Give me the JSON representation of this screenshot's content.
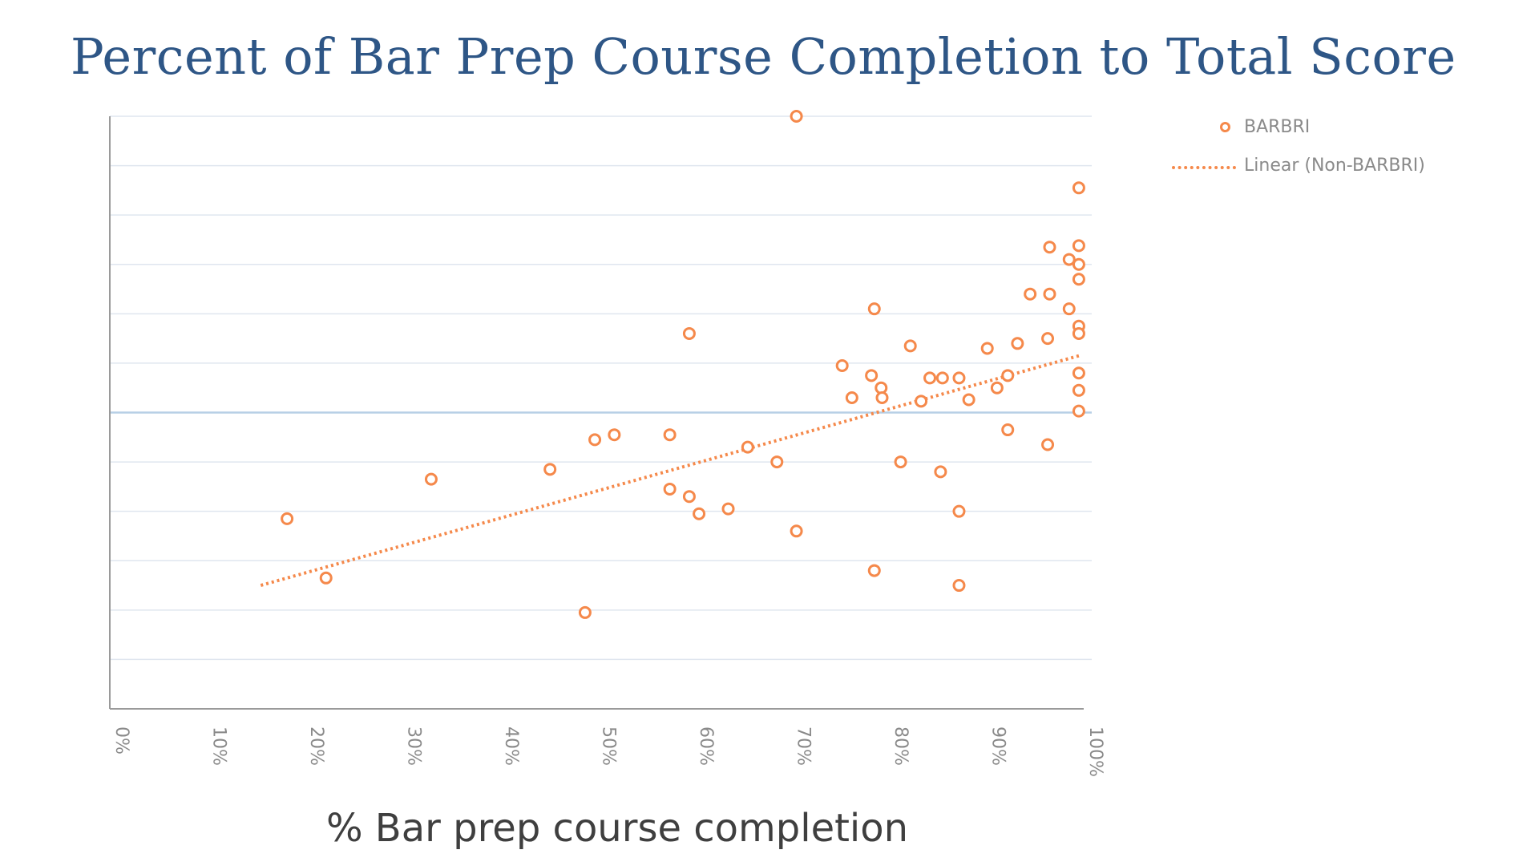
{
  "chart_data": {
    "type": "scatter",
    "title": "Percent of Bar Prep Course Completion to Total Score",
    "xlabel": "% Bar prep course completion",
    "ylabel": "",
    "xlim": [
      0,
      100
    ],
    "ylim": [
      0,
      12
    ],
    "x_tick_labels": [
      "0%",
      "10%",
      "20%",
      "30%",
      "40%",
      "50%",
      "60%",
      "70%",
      "80%",
      "90%",
      "100%"
    ],
    "x_ticks": [
      0,
      10,
      20,
      30,
      40,
      50,
      60,
      70,
      80,
      90,
      100
    ],
    "y_gridlines": [
      1,
      2,
      3,
      4,
      5,
      6,
      7,
      8,
      9,
      10,
      11,
      12
    ],
    "y_reference_line": 6,
    "grid": true,
    "legend_position": "top-right",
    "series": [
      {
        "name": "BARBRI",
        "marker": "open-circle",
        "color": "#f5894b",
        "points": [
          [
            70.5,
            12.0
          ],
          [
            99.5,
            10.55
          ],
          [
            96.5,
            9.35
          ],
          [
            99.5,
            9.38
          ],
          [
            98.5,
            9.1
          ],
          [
            99.5,
            9.0
          ],
          [
            99.5,
            8.7
          ],
          [
            94.5,
            8.4
          ],
          [
            96.5,
            8.4
          ],
          [
            98.5,
            8.1
          ],
          [
            78.5,
            8.1
          ],
          [
            99.5,
            7.75
          ],
          [
            59.5,
            7.6
          ],
          [
            99.5,
            7.6
          ],
          [
            96.3,
            7.5
          ],
          [
            93.2,
            7.4
          ],
          [
            90.1,
            7.3
          ],
          [
            82.2,
            7.35
          ],
          [
            75.2,
            6.95
          ],
          [
            78.2,
            6.75
          ],
          [
            92.2,
            6.75
          ],
          [
            99.5,
            6.8
          ],
          [
            84.2,
            6.7
          ],
          [
            85.5,
            6.7
          ],
          [
            87.2,
            6.7
          ],
          [
            91.1,
            6.5
          ],
          [
            79.2,
            6.5
          ],
          [
            99.5,
            6.45
          ],
          [
            76.2,
            6.3
          ],
          [
            79.3,
            6.3
          ],
          [
            83.3,
            6.23
          ],
          [
            88.2,
            6.26
          ],
          [
            99.5,
            6.03
          ],
          [
            51.8,
            5.55
          ],
          [
            49.8,
            5.45
          ],
          [
            57.5,
            5.55
          ],
          [
            92.2,
            5.65
          ],
          [
            96.3,
            5.35
          ],
          [
            65.5,
            5.3
          ],
          [
            68.5,
            5.0
          ],
          [
            81.2,
            5.0
          ],
          [
            85.3,
            4.8
          ],
          [
            45.2,
            4.85
          ],
          [
            33.0,
            4.65
          ],
          [
            57.5,
            4.45
          ],
          [
            59.5,
            4.3
          ],
          [
            63.5,
            4.05
          ],
          [
            60.5,
            3.95
          ],
          [
            87.2,
            4.0
          ],
          [
            18.2,
            3.85
          ],
          [
            70.5,
            3.6
          ],
          [
            22.2,
            2.65
          ],
          [
            78.5,
            2.8
          ],
          [
            87.2,
            2.5
          ],
          [
            48.8,
            1.95
          ]
        ]
      },
      {
        "name": "Linear (Non-BARBRI)",
        "style": "dotted-line",
        "color": "#f5894b",
        "x": [
          15.5,
          99.5
        ],
        "y": [
          2.5,
          7.15
        ]
      }
    ]
  },
  "legend": {
    "items": [
      {
        "label": "BARBRI",
        "symbol": "circle"
      },
      {
        "label": "Linear (Non-BARBRI)",
        "symbol": "dotted-line"
      }
    ]
  },
  "colors": {
    "title": "#2e5686",
    "marker": "#f5894b",
    "gridline": "#dfe6ef",
    "reference_line": "#b7cfe6",
    "axis": "#9a9a9a",
    "tick_label": "#8a8a8a"
  }
}
